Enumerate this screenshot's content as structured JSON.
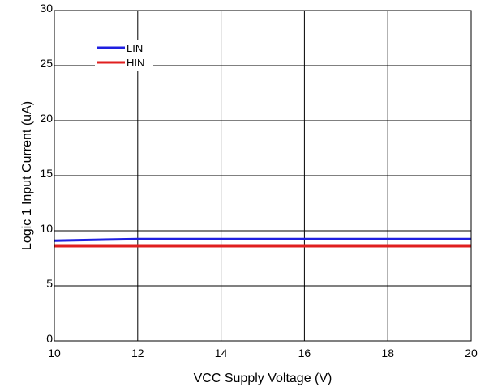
{
  "chart_data": {
    "type": "line",
    "xlabel": "VCC Supply Voltage (V)",
    "ylabel": "Logic 1 Input Current (uA)",
    "xlim": [
      10,
      20
    ],
    "ylim": [
      0,
      30
    ],
    "x_ticks": [
      10,
      12,
      14,
      16,
      18,
      20
    ],
    "y_ticks": [
      0,
      5,
      10,
      15,
      20,
      25,
      30
    ],
    "grid": true,
    "legend_position": "top-left",
    "series": [
      {
        "name": "LIN",
        "color": "#1f1fe0",
        "x": [
          10,
          12,
          14,
          16,
          18,
          20
        ],
        "y": [
          9.1,
          9.25,
          9.25,
          9.25,
          9.25,
          9.25
        ]
      },
      {
        "name": "HIN",
        "color": "#e01f1f",
        "x": [
          10,
          12,
          14,
          16,
          18,
          20
        ],
        "y": [
          8.6,
          8.6,
          8.6,
          8.6,
          8.6,
          8.6
        ]
      }
    ]
  }
}
